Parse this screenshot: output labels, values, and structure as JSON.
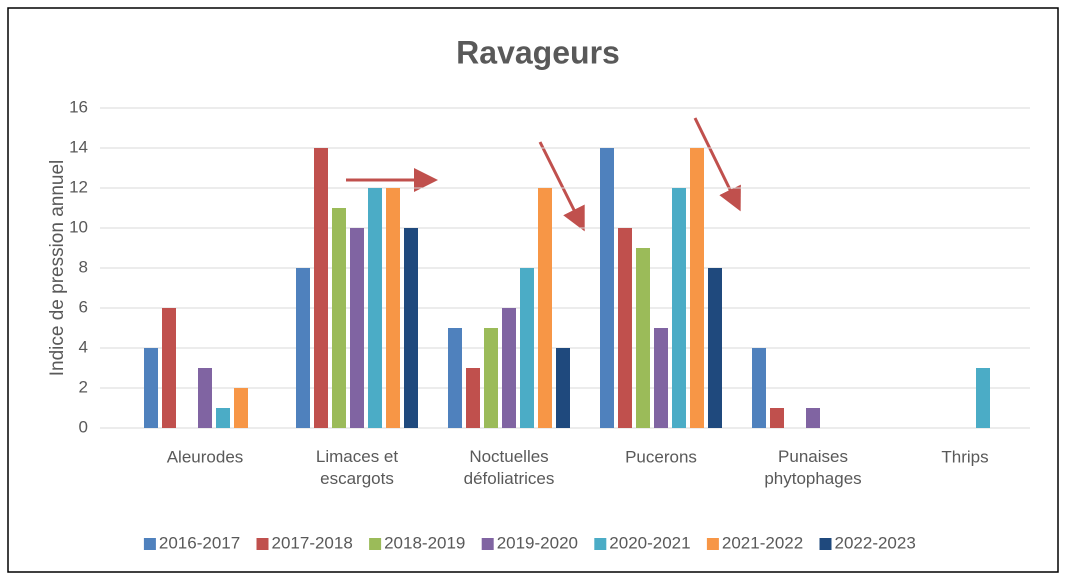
{
  "chart_data": {
    "type": "bar",
    "title": "Ravageurs",
    "y_label": "Indice de pression annuel",
    "categories": [
      "Aleurodes",
      "Limaces et escargots",
      "Noctuelles défoliatrices",
      "Pucerons",
      "Punaises phytophages",
      "Thrips"
    ],
    "series": [
      {
        "name": "2016-2017",
        "color": "#4f81bd",
        "values": [
          4,
          8,
          5,
          14,
          4,
          0
        ]
      },
      {
        "name": "2017-2018",
        "color": "#c0504d",
        "values": [
          6,
          14,
          3,
          10,
          1,
          0
        ]
      },
      {
        "name": "2018-2019",
        "color": "#9bbb59",
        "values": [
          0,
          11,
          5,
          9,
          0,
          0
        ]
      },
      {
        "name": "2019-2020",
        "color": "#8064a2",
        "values": [
          3,
          10,
          6,
          5,
          1,
          0
        ]
      },
      {
        "name": "2020-2021",
        "color": "#4bacc6",
        "values": [
          1,
          12,
          8,
          12,
          0,
          3
        ]
      },
      {
        "name": "2021-2022",
        "color": "#f79646",
        "values": [
          2,
          12,
          12,
          14,
          0,
          0
        ]
      },
      {
        "name": "2022-2023",
        "color": "#1f497d",
        "values": [
          0,
          10,
          4,
          8,
          0,
          0
        ]
      }
    ],
    "ylim": [
      0,
      16
    ],
    "yticks": [
      0,
      2,
      4,
      6,
      8,
      10,
      12,
      14,
      16
    ],
    "grid": true,
    "legend": "bottom"
  }
}
